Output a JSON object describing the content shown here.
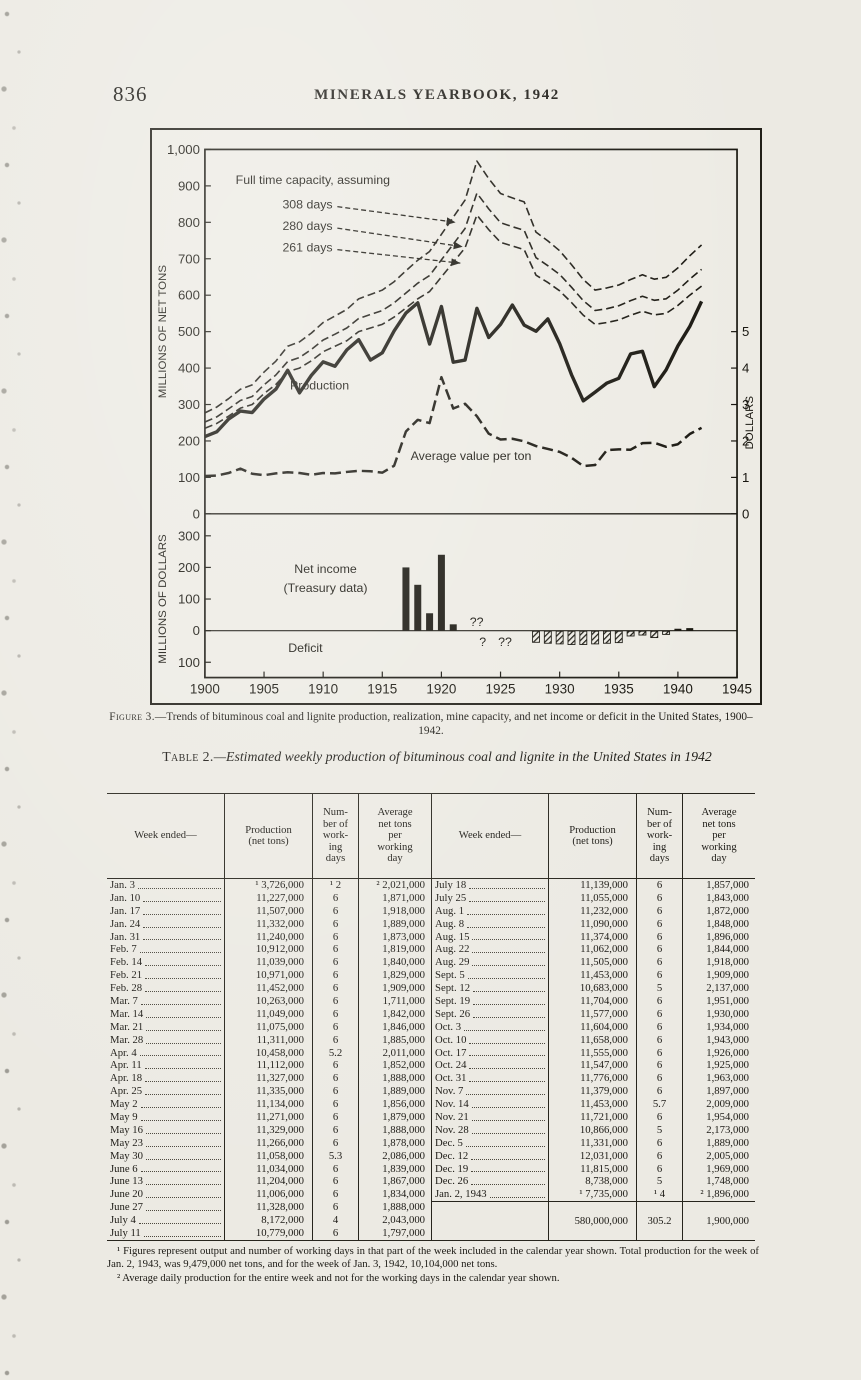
{
  "page": {
    "page_number": "836",
    "running_title": "MINERALS YEARBOOK, 1942"
  },
  "figure": {
    "caption_label": "Figure 3.",
    "caption": "—Trends of bituminous coal and lignite production, realization, mine capacity, and net income or deficit in the United States, 1900–1942."
  },
  "chart_data": {
    "type": "line",
    "years": [
      1900,
      1901,
      1902,
      1903,
      1904,
      1905,
      1906,
      1907,
      1908,
      1909,
      1910,
      1911,
      1912,
      1913,
      1914,
      1915,
      1916,
      1917,
      1918,
      1919,
      1920,
      1921,
      1922,
      1923,
      1924,
      1925,
      1926,
      1927,
      1928,
      1929,
      1930,
      1931,
      1932,
      1933,
      1934,
      1935,
      1936,
      1937,
      1938,
      1939,
      1940,
      1941,
      1942
    ],
    "x_tick_years": [
      1900,
      1905,
      1910,
      1915,
      1920,
      1925,
      1930,
      1935,
      1940,
      1945
    ],
    "top_panel": {
      "y_axis_label": "MILLIONS OF NET TONS",
      "y_ticks": [
        0,
        100,
        200,
        300,
        400,
        500,
        600,
        700,
        800,
        900,
        1000
      ],
      "right_axis_label": "DOLLARS",
      "right_ticks": [
        0,
        1,
        2,
        3,
        4,
        5
      ]
    },
    "bottom_panel": {
      "y_axis_label": "MILLIONS OF DOLLARS",
      "y_ticks": [
        300,
        200,
        100,
        0,
        -100
      ],
      "bars": {
        "years": [
          1917,
          1918,
          1919,
          1920,
          1921,
          1928,
          1929,
          1930,
          1931,
          1932,
          1933,
          1934,
          1935,
          1936,
          1937,
          1938,
          1939,
          1940,
          1941
        ],
        "values": [
          200,
          145,
          55,
          240,
          20,
          -35,
          -38,
          -40,
          -42,
          -42,
          -40,
          -38,
          -36,
          -15,
          -12,
          -20,
          -10,
          6,
          8
        ]
      }
    },
    "series": [
      {
        "name": "capacity_308_days",
        "axis": "tons",
        "values": [
          277,
          293,
          316,
          342,
          354,
          389,
          419,
          460,
          472,
          496,
          525,
          543,
          561,
          590,
          602,
          614,
          637,
          667,
          696,
          720,
          767,
          814,
          861,
          968,
          920,
          879,
          867,
          856,
          773,
          749,
          722,
          684,
          643,
          614,
          620,
          628,
          643,
          656,
          644,
          649,
          675,
          708,
          738
        ]
      },
      {
        "name": "capacity_280_days",
        "axis": "tons",
        "values": [
          252,
          266,
          288,
          311,
          322,
          354,
          381,
          418,
          429,
          451,
          477,
          493,
          510,
          536,
          547,
          558,
          579,
          606,
          633,
          654,
          697,
          740,
          783,
          880,
          837,
          799,
          788,
          778,
          703,
          681,
          657,
          622,
          585,
          558,
          563,
          571,
          585,
          597,
          586,
          590,
          614,
          644,
          671
        ]
      },
      {
        "name": "capacity_261_days",
        "axis": "tons",
        "values": [
          235,
          248,
          268,
          290,
          300,
          330,
          355,
          390,
          400,
          420,
          445,
          460,
          475,
          500,
          510,
          520,
          540,
          565,
          590,
          610,
          650,
          690,
          730,
          820,
          780,
          745,
          735,
          725,
          655,
          635,
          612,
          580,
          545,
          520,
          525,
          532,
          545,
          556,
          546,
          550,
          572,
          600,
          625
        ]
      },
      {
        "name": "production",
        "axis": "tons",
        "values": [
          212,
          225,
          260,
          282,
          278,
          315,
          342,
          394,
          332,
          380,
          417,
          405,
          450,
          478,
          422,
          442,
          502,
          551,
          579,
          466,
          569,
          416,
          422,
          564,
          484,
          520,
          573,
          518,
          501,
          535,
          467,
          382,
          310,
          334,
          359,
          372,
          439,
          446,
          349,
          395,
          461,
          514,
          583
        ]
      },
      {
        "name": "average_value_per_ton",
        "axis": "dollars",
        "values": [
          1.04,
          1.05,
          1.12,
          1.24,
          1.1,
          1.06,
          1.11,
          1.14,
          1.12,
          1.07,
          1.12,
          1.11,
          1.15,
          1.18,
          1.17,
          1.13,
          1.32,
          2.26,
          2.58,
          2.49,
          3.75,
          2.89,
          3.02,
          2.68,
          2.2,
          2.04,
          2.06,
          1.99,
          1.86,
          1.78,
          1.7,
          1.54,
          1.31,
          1.34,
          1.75,
          1.77,
          1.76,
          1.94,
          1.95,
          1.84,
          1.91,
          2.19,
          2.36
        ]
      }
    ],
    "annotations": [
      {
        "text": "Full time capacity, assuming",
        "panel": "top",
        "year": 1902.6,
        "value": 905,
        "anchor": "start"
      },
      {
        "text": "308 days",
        "panel": "top",
        "year": 1910.8,
        "value": 838,
        "anchor": "end"
      },
      {
        "text": "280 days",
        "panel": "top",
        "year": 1910.8,
        "value": 779,
        "anchor": "end"
      },
      {
        "text": "261 days",
        "panel": "top",
        "year": 1910.8,
        "value": 720,
        "anchor": "end"
      },
      {
        "text": "Production",
        "panel": "top",
        "year": 1907.2,
        "value": 341,
        "anchor": "start"
      },
      {
        "text": "Average value per ton",
        "panel": "top",
        "year": 1917.4,
        "value": 148,
        "anchor": "start"
      },
      {
        "text": "Net income",
        "panel": "bottom",
        "year": 1910.2,
        "value": 182,
        "anchor": "middle"
      },
      {
        "text": "(Treasury data)",
        "panel": "bottom",
        "year": 1910.2,
        "value": 122,
        "anchor": "middle"
      },
      {
        "text": "Deficit",
        "panel": "bottom",
        "year": 1908.5,
        "value": -68,
        "anchor": "middle"
      },
      {
        "text": "??",
        "panel": "bottom",
        "year": 1922.4,
        "value": 14,
        "anchor": "start"
      },
      {
        "text": "?",
        "panel": "bottom",
        "year": 1923.2,
        "value": -48,
        "anchor": "start"
      },
      {
        "text": "??",
        "panel": "bottom",
        "year": 1924.8,
        "value": -48,
        "anchor": "start"
      }
    ],
    "arrows": [
      {
        "panel": "top",
        "year1": 1911.2,
        "value1": 843,
        "year2": 1921.2,
        "value2": 800
      },
      {
        "panel": "top",
        "year1": 1911.2,
        "value1": 784,
        "year2": 1921.8,
        "value2": 733
      },
      {
        "panel": "top",
        "year1": 1911.2,
        "value1": 725,
        "year2": 1921.6,
        "value2": 688
      }
    ]
  },
  "table": {
    "title_label": "Table 2.",
    "title": "—Estimated weekly production of bituminous coal and lignite in the United States in 1942",
    "headers": {
      "week": "Week ended—",
      "production": "Production\n(net tons)",
      "days": "Num-\nber of\nwork-\ning\ndays",
      "avg": "Average\nnet tons\nper\nworking\nday"
    },
    "left_rows": [
      [
        "Jan. 3",
        "¹ 3,726,000",
        "¹ 2",
        "² 2,021,000"
      ],
      [
        "Jan. 10",
        "11,227,000",
        "6",
        "1,871,000"
      ],
      [
        "Jan. 17",
        "11,507,000",
        "6",
        "1,918,000"
      ],
      [
        "Jan. 24",
        "11,332,000",
        "6",
        "1,889,000"
      ],
      [
        "Jan. 31",
        "11,240,000",
        "6",
        "1,873,000"
      ],
      [
        "Feb. 7",
        "10,912,000",
        "6",
        "1,819,000"
      ],
      [
        "Feb. 14",
        "11,039,000",
        "6",
        "1,840,000"
      ],
      [
        "Feb. 21",
        "10,971,000",
        "6",
        "1,829,000"
      ],
      [
        "Feb. 28",
        "11,452,000",
        "6",
        "1,909,000"
      ],
      [
        "Mar. 7",
        "10,263,000",
        "6",
        "1,711,000"
      ],
      [
        "Mar. 14",
        "11,049,000",
        "6",
        "1,842,000"
      ],
      [
        "Mar. 21",
        "11,075,000",
        "6",
        "1,846,000"
      ],
      [
        "Mar. 28",
        "11,311,000",
        "6",
        "1,885,000"
      ],
      [
        "Apr. 4",
        "10,458,000",
        "5.2",
        "2,011,000"
      ],
      [
        "Apr. 11",
        "11,112,000",
        "6",
        "1,852,000"
      ],
      [
        "Apr. 18",
        "11,327,000",
        "6",
        "1,888,000"
      ],
      [
        "Apr. 25",
        "11,335,000",
        "6",
        "1,889,000"
      ],
      [
        "May 2",
        "11,134,000",
        "6",
        "1,856,000"
      ],
      [
        "May 9",
        "11,271,000",
        "6",
        "1,879,000"
      ],
      [
        "May 16",
        "11,329,000",
        "6",
        "1,888,000"
      ],
      [
        "May 23",
        "11,266,000",
        "6",
        "1,878,000"
      ],
      [
        "May 30",
        "11,058,000",
        "5.3",
        "2,086,000"
      ],
      [
        "June 6",
        "11,034,000",
        "6",
        "1,839,000"
      ],
      [
        "June 13",
        "11,204,000",
        "6",
        "1,867,000"
      ],
      [
        "June 20",
        "11,006,000",
        "6",
        "1,834,000"
      ],
      [
        "June 27",
        "11,328,000",
        "6",
        "1,888,000"
      ],
      [
        "July 4",
        "8,172,000",
        "4",
        "2,043,000"
      ],
      [
        "July 11",
        "10,779,000",
        "6",
        "1,797,000"
      ]
    ],
    "right_rows": [
      [
        "July 18",
        "11,139,000",
        "6",
        "1,857,000"
      ],
      [
        "July 25",
        "11,055,000",
        "6",
        "1,843,000"
      ],
      [
        "Aug. 1",
        "11,232,000",
        "6",
        "1,872,000"
      ],
      [
        "Aug. 8",
        "11,090,000",
        "6",
        "1,848,000"
      ],
      [
        "Aug. 15",
        "11,374,000",
        "6",
        "1,896,000"
      ],
      [
        "Aug. 22",
        "11,062,000",
        "6",
        "1,844,000"
      ],
      [
        "Aug. 29",
        "11,505,000",
        "6",
        "1,918,000"
      ],
      [
        "Sept. 5",
        "11,453,000",
        "6",
        "1,909,000"
      ],
      [
        "Sept. 12",
        "10,683,000",
        "5",
        "2,137,000"
      ],
      [
        "Sept. 19",
        "11,704,000",
        "6",
        "1,951,000"
      ],
      [
        "Sept. 26",
        "11,577,000",
        "6",
        "1,930,000"
      ],
      [
        "Oct. 3",
        "11,604,000",
        "6",
        "1,934,000"
      ],
      [
        "Oct. 10",
        "11,658,000",
        "6",
        "1,943,000"
      ],
      [
        "Oct. 17",
        "11,555,000",
        "6",
        "1,926,000"
      ],
      [
        "Oct. 24",
        "11,547,000",
        "6",
        "1,925,000"
      ],
      [
        "Oct. 31",
        "11,776,000",
        "6",
        "1,963,000"
      ],
      [
        "Nov. 7",
        "11,379,000",
        "6",
        "1,897,000"
      ],
      [
        "Nov. 14",
        "11,453,000",
        "5.7",
        "2,009,000"
      ],
      [
        "Nov. 21",
        "11,721,000",
        "6",
        "1,954,000"
      ],
      [
        "Nov. 28",
        "10,866,000",
        "5",
        "2,173,000"
      ],
      [
        "Dec. 5",
        "11,331,000",
        "6",
        "1,889,000"
      ],
      [
        "Dec. 12",
        "12,031,000",
        "6",
        "2,005,000"
      ],
      [
        "Dec. 19",
        "11,815,000",
        "6",
        "1,969,000"
      ],
      [
        "Dec. 26",
        "8,738,000",
        "5",
        "1,748,000"
      ],
      [
        "Jan. 2, 1943",
        "¹ 7,735,000",
        "¹ 4",
        "² 1,896,000"
      ]
    ],
    "total_row": [
      "",
      "580,000,000",
      "305.2",
      "1,900,000"
    ]
  },
  "footnotes": [
    "¹ Figures represent output and number of working days in that part of the week included in the calendar year shown.  Total production for the week of Jan. 2, 1943, was 9,479,000 net tons, and for the week of Jan. 3, 1942, 10,104,000 net tons.",
    "² Average daily production for the entire week and not for the working days in the calendar year shown."
  ]
}
